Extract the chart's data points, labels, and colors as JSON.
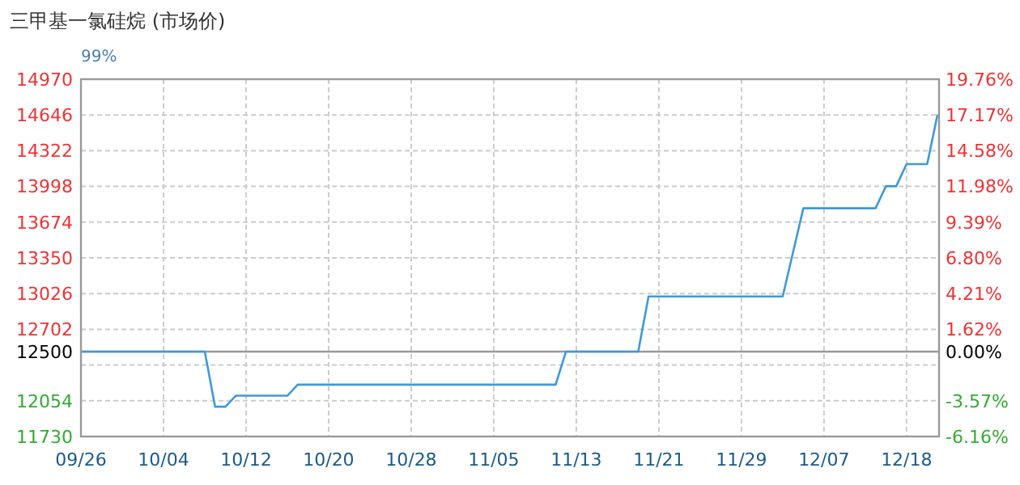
{
  "chart_data": {
    "type": "line",
    "title": "三甲基一氯硅烷 (市场价)",
    "subtitle": "99%",
    "categories": [
      "09/26",
      null,
      null,
      null,
      null,
      null,
      null,
      null,
      "10/04",
      null,
      null,
      null,
      null,
      null,
      null,
      null,
      "10/12",
      null,
      null,
      null,
      null,
      null,
      null,
      null,
      "10/20",
      null,
      null,
      null,
      null,
      null,
      null,
      null,
      "10/28",
      null,
      null,
      null,
      null,
      null,
      null,
      null,
      "11/05",
      null,
      null,
      null,
      null,
      null,
      null,
      null,
      "11/13",
      null,
      null,
      null,
      null,
      null,
      null,
      null,
      "11/21",
      null,
      null,
      null,
      null,
      null,
      null,
      null,
      "11/29",
      null,
      null,
      null,
      null,
      null,
      null,
      null,
      "12/07",
      null,
      null,
      null,
      null,
      null,
      null,
      null,
      "12/18",
      null,
      null,
      null
    ],
    "series": [
      {
        "color": "#3d9ad9",
        "values": [
          12500,
          12500,
          12500,
          12500,
          12500,
          12500,
          12500,
          12500,
          12500,
          12500,
          12500,
          12500,
          12500,
          12000,
          12000,
          12100,
          12100,
          12100,
          12100,
          12100,
          12100,
          12200,
          12200,
          12200,
          12200,
          12200,
          12200,
          12200,
          12200,
          12200,
          12200,
          12200,
          12200,
          12200,
          12200,
          12200,
          12200,
          12200,
          12200,
          12200,
          12200,
          12200,
          12200,
          12200,
          12200,
          12200,
          12200,
          12500,
          12500,
          12500,
          12500,
          12500,
          12500,
          12500,
          12500,
          13000,
          13000,
          13000,
          13000,
          13000,
          13000,
          13000,
          13000,
          13000,
          13000,
          13000,
          13000,
          13000,
          13000,
          13400,
          13800,
          13800,
          13800,
          13800,
          13800,
          13800,
          13800,
          13800,
          14000,
          14000,
          14200,
          14200,
          14200,
          14650
        ]
      }
    ],
    "ylim": [
      11730,
      14970
    ],
    "yticks": [
      11730,
      12054,
      {
        "value": 12378,
        "label": null
      },
      12500,
      12702,
      13026,
      13350,
      13674,
      13998,
      14322,
      14646,
      14970
    ],
    "y2lim": [
      -6.16,
      19.76
    ],
    "y2ticks": [
      {
        "value": -6.16,
        "label": "-6.16%"
      },
      {
        "value": -3.57,
        "label": "-3.57%"
      },
      {
        "value": 0,
        "label": "0.00%"
      },
      {
        "value": 1.62,
        "label": "1.62%"
      },
      {
        "value": 4.21,
        "label": "4.21%"
      },
      {
        "value": 6.8,
        "label": "6.80%"
      },
      {
        "value": 9.39,
        "label": "9.39%"
      },
      {
        "value": 11.98,
        "label": "11.98%"
      },
      {
        "value": 14.58,
        "label": "14.58%"
      },
      {
        "value": 17.17,
        "label": "17.17%"
      },
      {
        "value": 19.76,
        "label": "19.76%"
      }
    ],
    "ref_lines": [
      {
        "axis": "y",
        "value": 12500,
        "color": "#999999"
      }
    ],
    "grid": true
  }
}
